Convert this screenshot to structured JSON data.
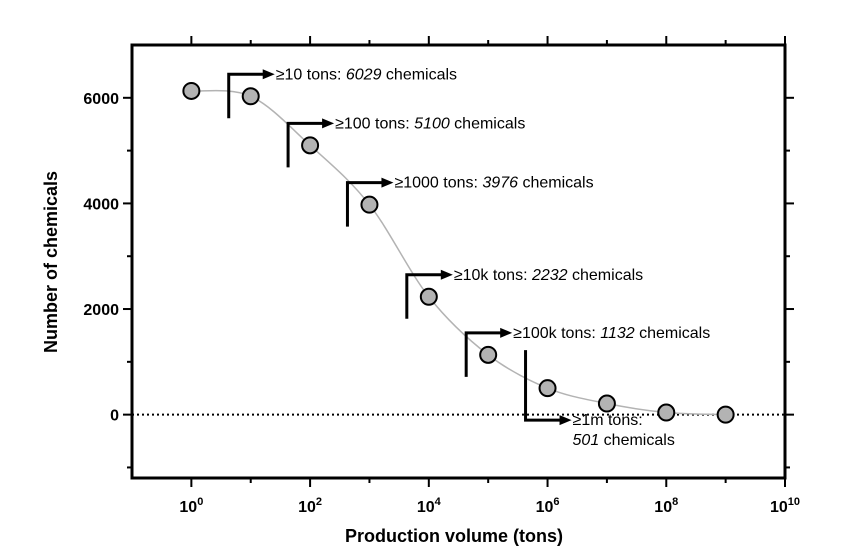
{
  "chart_data": {
    "type": "scatter",
    "title": "",
    "xlabel": "Production volume (tons)",
    "ylabel": "Number of chemicals",
    "x_scale": "log10",
    "xlim": [
      0.1,
      10000000000
    ],
    "ylim": [
      -1200,
      7000
    ],
    "x_ticks": [
      {
        "base": "10",
        "exp": "0",
        "value": 1
      },
      {
        "base": "10",
        "exp": "2",
        "value": 100
      },
      {
        "base": "10",
        "exp": "4",
        "value": 10000
      },
      {
        "base": "10",
        "exp": "6",
        "value": 1000000
      },
      {
        "base": "10",
        "exp": "8",
        "value": 100000000
      },
      {
        "base": "10",
        "exp": "10",
        "value": 10000000000
      }
    ],
    "y_ticks": [
      {
        "label": "0",
        "value": 0
      },
      {
        "label": "2000",
        "value": 2000
      },
      {
        "label": "4000",
        "value": 4000
      },
      {
        "label": "6000",
        "value": 6000
      }
    ],
    "grid": false,
    "zero_line": "dotted",
    "series": [
      {
        "x": [
          1,
          10,
          100,
          1000,
          10000,
          100000,
          1000000,
          10000000,
          100000000,
          1000000000
        ],
        "y": [
          6130,
          6029,
          5100,
          3976,
          2232,
          1132,
          501,
          210,
          40,
          0
        ],
        "marker": "circle",
        "marker_color": "#b3b3b3",
        "line_color": "#b3b3b3"
      }
    ],
    "annotations": [
      {
        "threshold": "≥10 tons: ",
        "count": "6029",
        "suffix": " chemicals",
        "x": 10,
        "y": 6029,
        "side": "above"
      },
      {
        "threshold": "≥100 tons: ",
        "count": "5100",
        "suffix": " chemicals",
        "x": 100,
        "y": 5100,
        "side": "above"
      },
      {
        "threshold": "≥1000 tons: ",
        "count": "3976",
        "suffix": " chemicals",
        "x": 1000,
        "y": 3976,
        "side": "above"
      },
      {
        "threshold": "≥10k tons: ",
        "count": "2232",
        "suffix": " chemicals",
        "x": 10000,
        "y": 2232,
        "side": "above"
      },
      {
        "threshold": "≥100k tons: ",
        "count": "1132",
        "suffix": " chemicals",
        "x": 100000,
        "y": 1132,
        "side": "above"
      },
      {
        "threshold": "≥1m tons:",
        "count": "501",
        "suffix": " chemicals",
        "x": 1000000,
        "y": 501,
        "side": "below"
      }
    ]
  }
}
